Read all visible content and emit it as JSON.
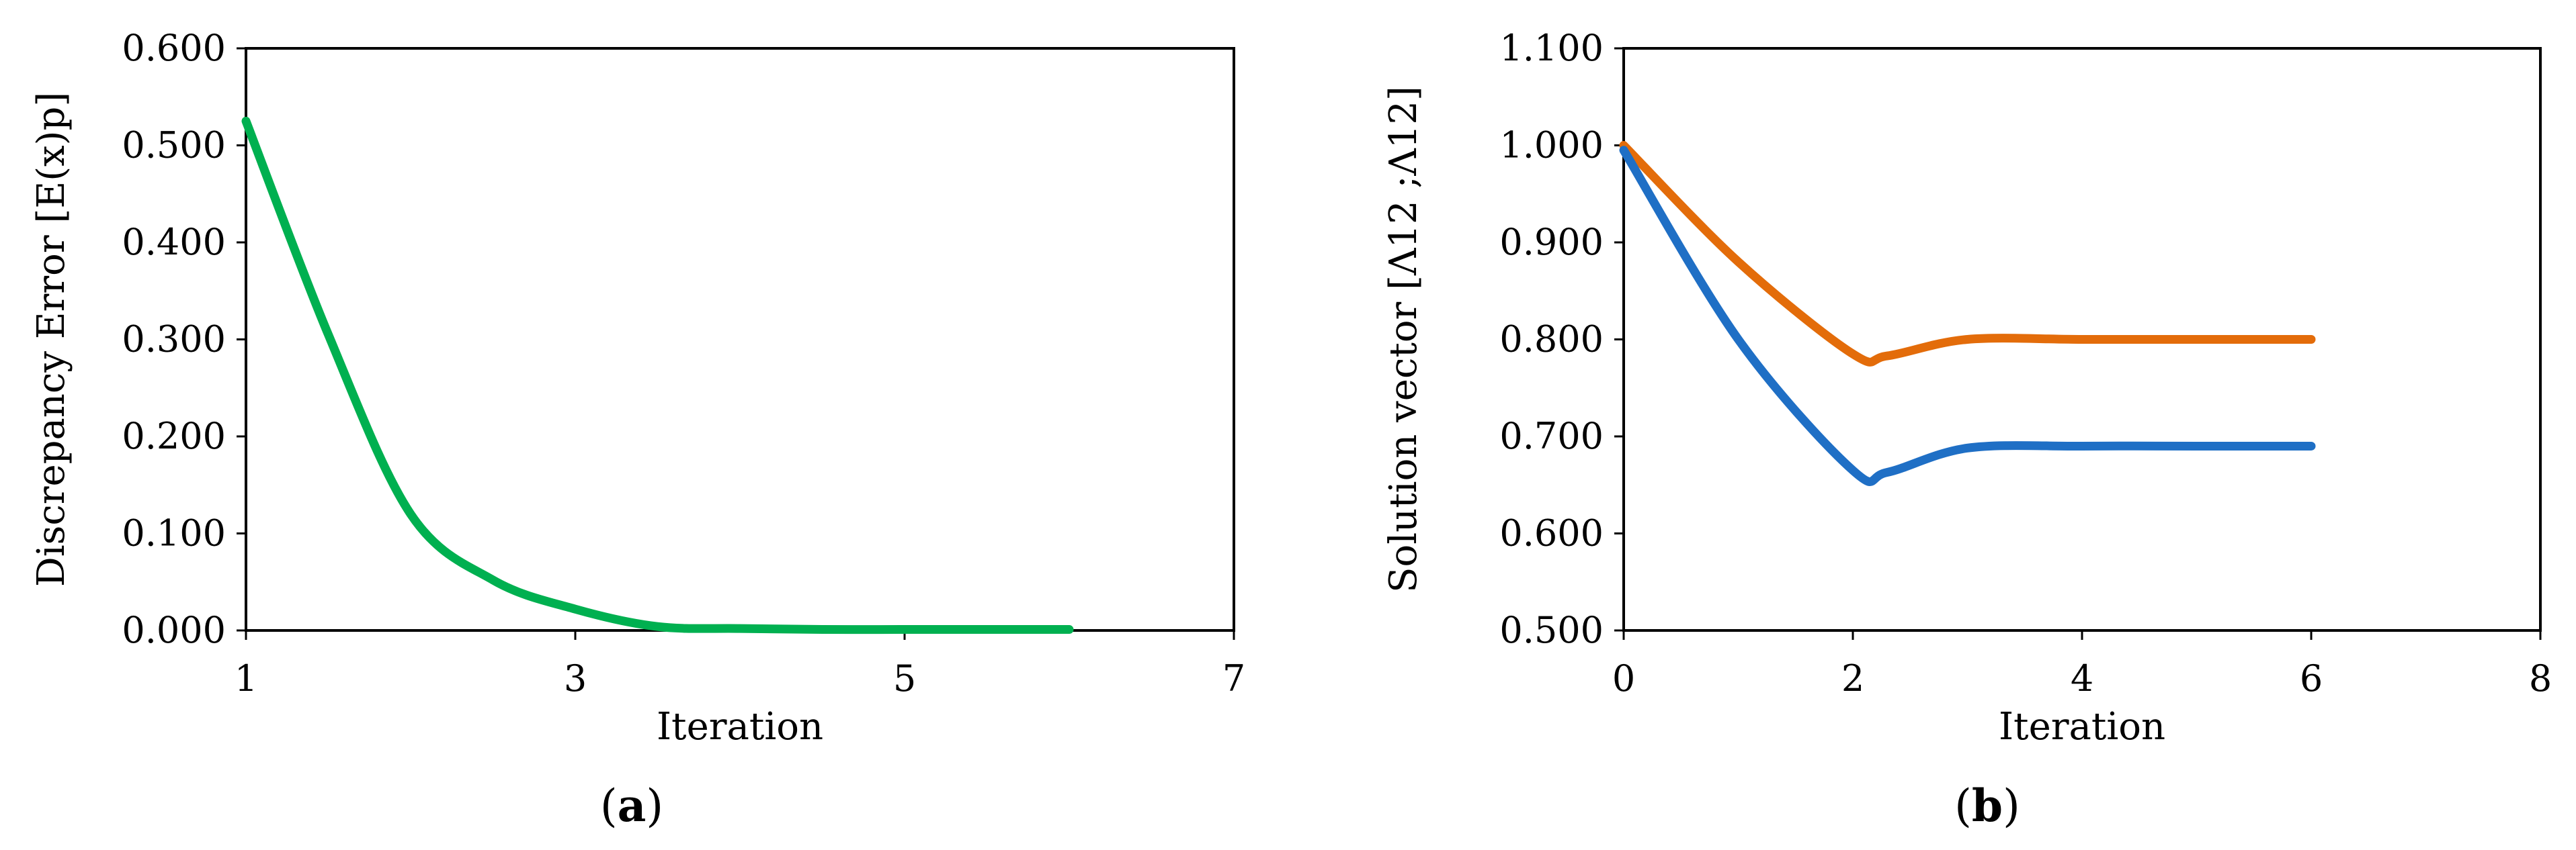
{
  "chart_data": [
    {
      "type": "line",
      "panel_label": {
        "open": "(",
        "letter": "a",
        "close": ")"
      },
      "xlabel": "Iteration",
      "ylabel": "Discrepancy Error [E(x)p]",
      "xlim": [
        1,
        7
      ],
      "ylim": [
        0,
        0.6
      ],
      "xticks": [
        "1",
        "3",
        "5",
        "7"
      ],
      "yticks": [
        "0.000",
        "0.100",
        "0.200",
        "0.300",
        "0.400",
        "0.500",
        "0.600"
      ],
      "grid": false,
      "series": [
        {
          "color": "#00b050",
          "x": [
            1,
            1.5,
            2,
            2.5,
            3,
            3.5,
            4,
            4.5,
            5,
            5.5,
            6
          ],
          "y": [
            0.525,
            0.305,
            0.12,
            0.052,
            0.022,
            0.004,
            0.002,
            0.001,
            0.001,
            0.001,
            0.001
          ]
        }
      ]
    },
    {
      "type": "line",
      "panel_label": {
        "open": "(",
        "letter": "b",
        "close": ")"
      },
      "xlabel": "Iteration",
      "ylabel": "Solution vector [Λ12 ;Λ12]",
      "xlim": [
        0,
        8
      ],
      "ylim": [
        0.5,
        1.1
      ],
      "xticks": [
        "0",
        "2",
        "4",
        "6",
        "8"
      ],
      "yticks": [
        "0.500",
        "0.600",
        "0.700",
        "0.800",
        "0.900",
        "1.000",
        "1.100"
      ],
      "grid": false,
      "series": [
        {
          "color": "#e36c0a",
          "x": [
            0,
            1,
            2,
            2.3,
            3,
            4,
            5,
            6
          ],
          "y": [
            1.0,
            0.88,
            0.785,
            0.783,
            0.8,
            0.8,
            0.8,
            0.8
          ]
        },
        {
          "color": "#1f6fc5",
          "x": [
            0,
            1,
            2,
            2.3,
            3,
            4,
            5,
            6
          ],
          "y": [
            0.995,
            0.8,
            0.665,
            0.663,
            0.688,
            0.69,
            0.69,
            0.69
          ]
        }
      ]
    }
  ]
}
